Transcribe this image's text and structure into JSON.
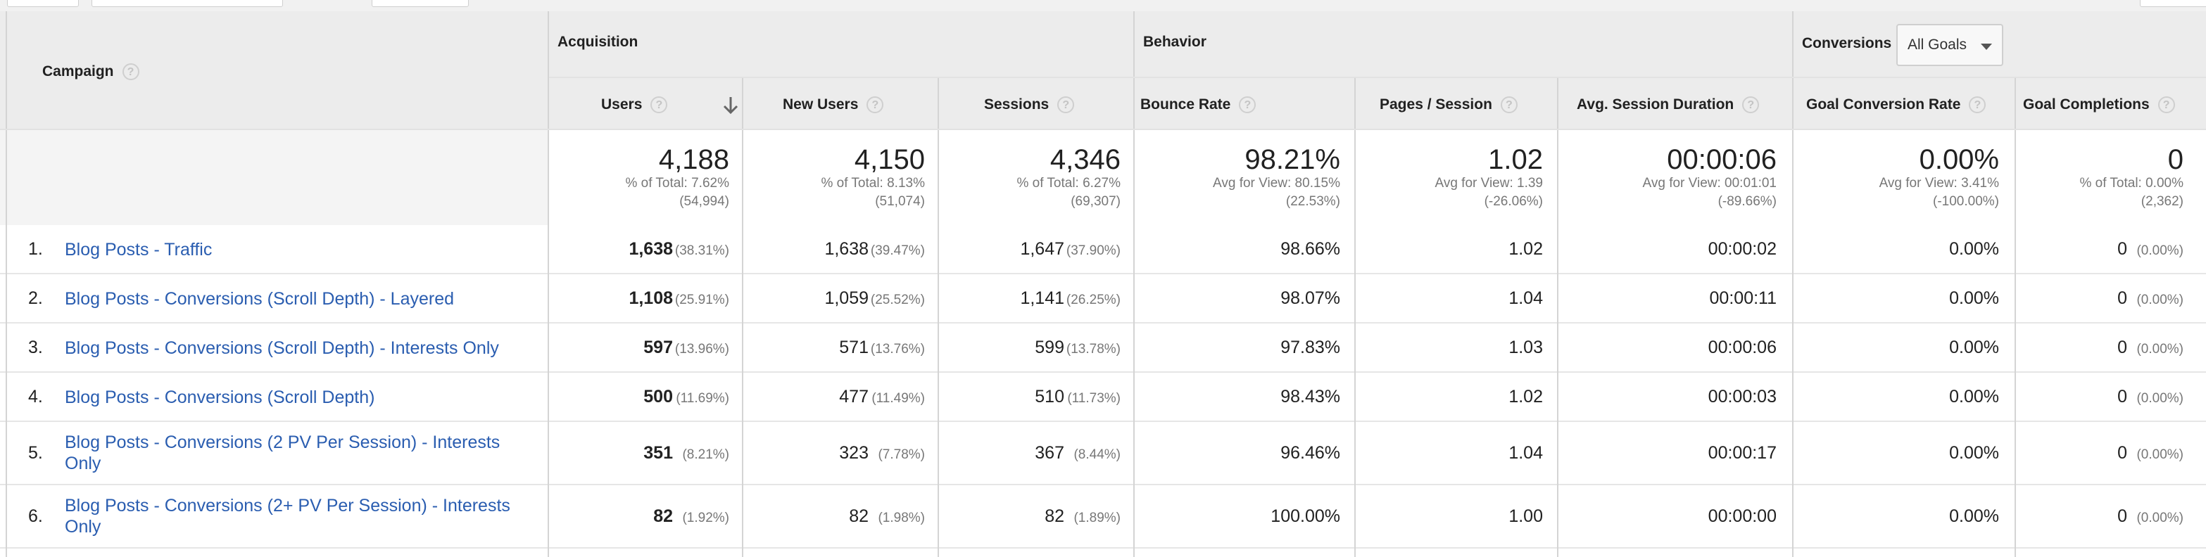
{
  "header": {
    "groups": {
      "campaign": "Campaign",
      "acquisition": "Acquisition",
      "behavior": "Behavior",
      "conversions": "Conversions"
    },
    "goal_select": {
      "value": "All Goals"
    },
    "columns": {
      "users": "Users",
      "new_users": "New Users",
      "sessions": "Sessions",
      "bounce_rate": "Bounce Rate",
      "pages_session": "Pages / Session",
      "avg_session_duration": "Avg. Session Duration",
      "goal_conversion_rate": "Goal Conversion Rate",
      "goal_completions": "Goal Completions"
    },
    "help_glyph": "?"
  },
  "totals": {
    "users": {
      "value": "4,188",
      "line1": "% of Total: 7.62%",
      "line2": "(54,994)"
    },
    "new_users": {
      "value": "4,150",
      "line1": "% of Total: 8.13%",
      "line2": "(51,074)"
    },
    "sessions": {
      "value": "4,346",
      "line1": "% of Total: 6.27%",
      "line2": "(69,307)"
    },
    "bounce_rate": {
      "value": "98.21%",
      "line1": "Avg for View: 80.15%",
      "line2": "(22.53%)"
    },
    "pages_session": {
      "value": "1.02",
      "line1": "Avg for View: 1.39",
      "line2": "(-26.06%)"
    },
    "avg_session_duration": {
      "value": "00:00:06",
      "line1": "Avg for View: 00:01:01",
      "line2": "(-89.66%)"
    },
    "goal_conversion_rate": {
      "value": "0.00%",
      "line1": "Avg for View: 3.41%",
      "line2": "(-100.00%)"
    },
    "goal_completions": {
      "value": "0",
      "line1": "% of Total: 0.00%",
      "line2": "(2,362)"
    }
  },
  "rows": [
    {
      "index": "1.",
      "campaign": "Blog Posts - Traffic",
      "users": "1,638",
      "users_pct": "(38.31%)",
      "new_users": "1,638",
      "new_users_pct": "(39.47%)",
      "sessions": "1,647",
      "sessions_pct": "(37.90%)",
      "bounce_rate": "98.66%",
      "pages_session": "1.02",
      "avg_session_duration": "00:00:02",
      "goal_conversion_rate": "0.00%",
      "goal_completions": "0",
      "goal_completions_pct": "(0.00%)"
    },
    {
      "index": "2.",
      "campaign": "Blog Posts - Conversions (Scroll Depth) - Layered",
      "users": "1,108",
      "users_pct": "(25.91%)",
      "new_users": "1,059",
      "new_users_pct": "(25.52%)",
      "sessions": "1,141",
      "sessions_pct": "(26.25%)",
      "bounce_rate": "98.07%",
      "pages_session": "1.04",
      "avg_session_duration": "00:00:11",
      "goal_conversion_rate": "0.00%",
      "goal_completions": "0",
      "goal_completions_pct": "(0.00%)"
    },
    {
      "index": "3.",
      "campaign": "Blog Posts - Conversions (Scroll Depth) - Interests Only",
      "users": "597",
      "users_pct": "(13.96%)",
      "new_users": "571",
      "new_users_pct": "(13.76%)",
      "sessions": "599",
      "sessions_pct": "(13.78%)",
      "bounce_rate": "97.83%",
      "pages_session": "1.03",
      "avg_session_duration": "00:00:06",
      "goal_conversion_rate": "0.00%",
      "goal_completions": "0",
      "goal_completions_pct": "(0.00%)"
    },
    {
      "index": "4.",
      "campaign": "Blog Posts - Conversions (Scroll Depth)",
      "users": "500",
      "users_pct": "(11.69%)",
      "new_users": "477",
      "new_users_pct": "(11.49%)",
      "sessions": "510",
      "sessions_pct": "(11.73%)",
      "bounce_rate": "98.43%",
      "pages_session": "1.02",
      "avg_session_duration": "00:00:03",
      "goal_conversion_rate": "0.00%",
      "goal_completions": "0",
      "goal_completions_pct": "(0.00%)"
    },
    {
      "index": "5.",
      "campaign": "Blog Posts - Conversions (2 PV Per Session) - Interests Only",
      "users": "351",
      "users_pct": "(8.21%)",
      "new_users": "323",
      "new_users_pct": "(7.78%)",
      "sessions": "367",
      "sessions_pct": "(8.44%)",
      "bounce_rate": "96.46%",
      "pages_session": "1.04",
      "avg_session_duration": "00:00:17",
      "goal_conversion_rate": "0.00%",
      "goal_completions": "0",
      "goal_completions_pct": "(0.00%)"
    },
    {
      "index": "6.",
      "campaign": "Blog Posts - Conversions (2+ PV Per Session) - Interests Only",
      "users": "82",
      "users_pct": "(1.92%)",
      "new_users": "82",
      "new_users_pct": "(1.98%)",
      "sessions": "82",
      "sessions_pct": "(1.89%)",
      "bounce_rate": "100.00%",
      "pages_session": "1.00",
      "avg_session_duration": "00:00:00",
      "goal_conversion_rate": "0.00%",
      "goal_completions": "0",
      "goal_completions_pct": "(0.00%)"
    }
  ]
}
